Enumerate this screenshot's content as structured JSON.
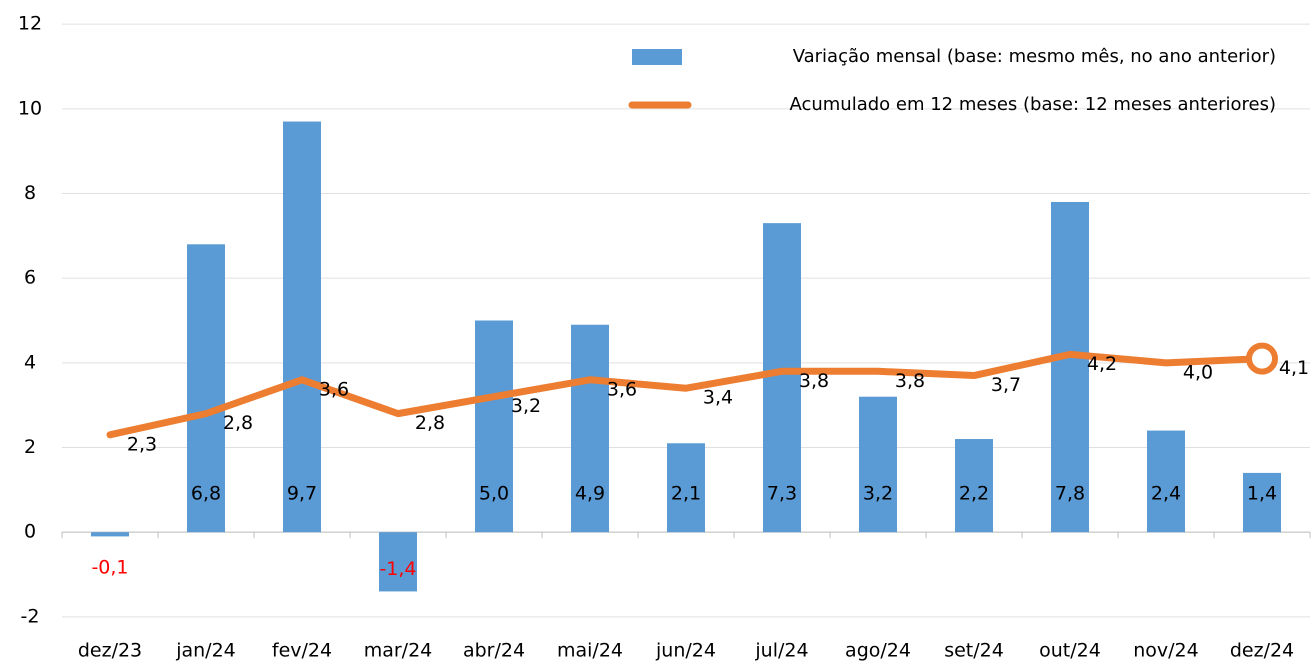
{
  "chart_data": {
    "type": "bar+line",
    "categories": [
      "dez/23",
      "jan/24",
      "fev/24",
      "mar/24",
      "abr/24",
      "mai/24",
      "jun/24",
      "jul/24",
      "ago/24",
      "set/24",
      "out/24",
      "nov/24",
      "dez/24"
    ],
    "series": [
      {
        "name": "Variação mensal (base: mesmo mês, no ano anterior)",
        "type": "bar",
        "color": "#5b9bd5",
        "values": [
          -0.1,
          6.8,
          9.7,
          -1.4,
          5.0,
          4.9,
          2.1,
          7.3,
          3.2,
          2.2,
          7.8,
          2.4,
          1.4
        ],
        "value_labels": [
          "-0,1",
          "6,8",
          "9,7",
          "-1,4",
          "5,0",
          "4,9",
          "2,1",
          "7,3",
          "3,2",
          "2,2",
          "7,8",
          "2,4",
          "1,4"
        ]
      },
      {
        "name": "Acumulado em 12 meses (base: 12 meses anteriores)",
        "type": "line",
        "color": "#ed7d31",
        "values": [
          2.3,
          2.8,
          3.6,
          2.8,
          3.2,
          3.6,
          3.4,
          3.8,
          3.8,
          3.7,
          4.2,
          4.0,
          4.1
        ],
        "value_labels": [
          "2,3",
          "2,8",
          "3,6",
          "2,8",
          "3,2",
          "3,6",
          "3,4",
          "3,8",
          "3,8",
          "3,7",
          "4,2",
          "4,0",
          "4,1"
        ]
      }
    ],
    "ylim": [
      -2.5,
      12.5
    ],
    "yticks": [
      -2,
      0,
      2,
      4,
      6,
      8,
      10,
      12
    ],
    "grid": true,
    "legend": "upper right",
    "negative_label_color": "#ff0000",
    "highlight_last_point": true
  }
}
